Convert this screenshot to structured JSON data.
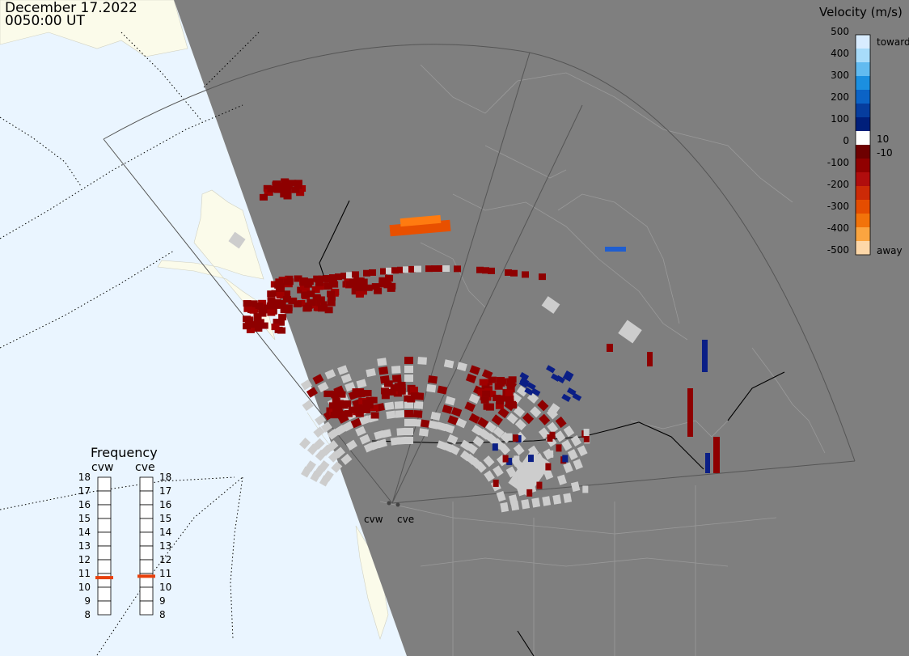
{
  "header": {
    "date": "December 17.2022",
    "time": "0050:00 UT"
  },
  "colorbar": {
    "title": "Velocity (m/s)",
    "ticks": [
      "500",
      "400",
      "300",
      "200",
      "100",
      "0",
      "-100",
      "-200",
      "-300",
      "-400",
      "-500"
    ],
    "toward_label": "toward",
    "away_label": "away",
    "inner_pos": "10",
    "inner_neg": "-10",
    "colors": [
      "#d8ecff",
      "#a8dcfa",
      "#62bbf0",
      "#1b8fe0",
      "#0b63c6",
      "#063d9e",
      "#001f7a",
      "#ffffff",
      "#6e0000",
      "#900000",
      "#b00d0d",
      "#cc2a07",
      "#e54d00",
      "#f2730a",
      "#fba540",
      "#fdd7a8"
    ]
  },
  "frequency": {
    "title": "Frequency",
    "sites": [
      "cvw",
      "cve"
    ],
    "scale": [
      "18",
      "17",
      "16",
      "15",
      "14",
      "13",
      "12",
      "11",
      "10",
      "9",
      "8"
    ],
    "values_mhz": [
      10.7,
      10.8
    ],
    "marker_color": "#e8400c"
  },
  "radar_sites": [
    "cvw",
    "cve"
  ],
  "map_colors": {
    "land": "#7f7f7f",
    "ocean": "#eaf5ff",
    "daylight_land": "#fbfbea",
    "ground_scatter": "#cdcdcd"
  }
}
